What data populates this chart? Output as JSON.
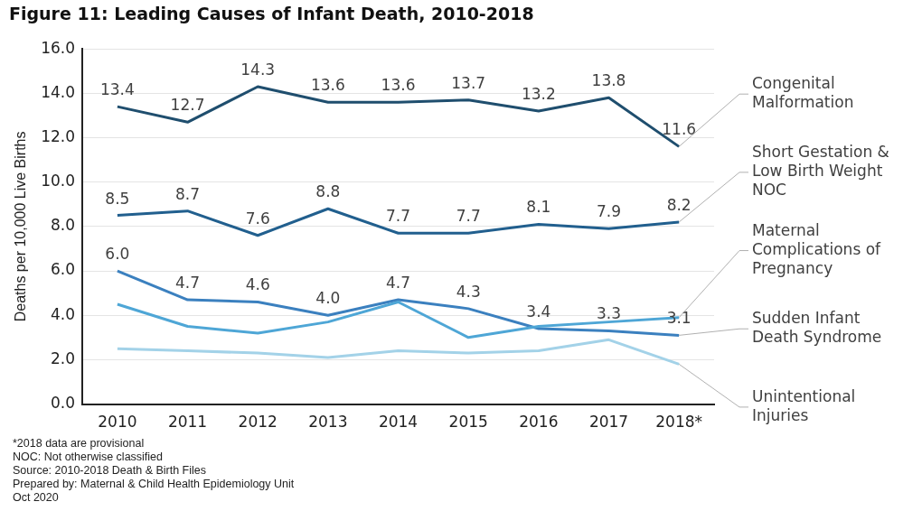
{
  "chart_data": {
    "type": "line",
    "title": "Figure 11: Leading Causes of Infant Death, 2010-2018",
    "ylabel": "Deaths per 10,000 Live Births",
    "categories": [
      "2010",
      "2011",
      "2012",
      "2013",
      "2014",
      "2015",
      "2016",
      "2017",
      "2018*"
    ],
    "series": [
      {
        "name": "Congenital Malformation",
        "color": "#1f4e6e",
        "values": [
          13.4,
          12.7,
          14.3,
          13.6,
          13.6,
          13.7,
          13.2,
          13.8,
          11.6
        ],
        "value_labels": [
          "13.4",
          "12.7",
          "14.3",
          "13.6",
          "13.6",
          "13.7",
          "13.2",
          "13.8",
          "11.6"
        ]
      },
      {
        "name": "Short Gestation & Low Birth Weight NOC",
        "color": "#215f8e",
        "values": [
          8.5,
          8.7,
          7.6,
          8.8,
          7.7,
          7.7,
          8.1,
          7.9,
          8.2
        ],
        "value_labels": [
          "8.5",
          "8.7",
          "7.6",
          "8.8",
          "7.7",
          "7.7",
          "8.1",
          "7.9",
          "8.2"
        ]
      },
      {
        "name": "Maternal Complications of Pregnancy",
        "color": "#4ea6d6",
        "values": [
          4.5,
          3.5,
          3.2,
          3.7,
          4.6,
          3.0,
          3.5,
          3.7,
          3.9
        ]
      },
      {
        "name": "Sudden Infant Death Syndrome",
        "color": "#3b80bf",
        "values": [
          6.0,
          4.7,
          4.6,
          4.0,
          4.7,
          4.3,
          3.4,
          3.3,
          3.1
        ],
        "value_labels": [
          "6.0",
          "4.7",
          "4.6",
          "4.0",
          "4.7",
          "4.3",
          "3.4",
          "3.3",
          "3.1"
        ]
      },
      {
        "name": "Unintentional Injuries",
        "color": "#a3d2e8",
        "values": [
          2.5,
          2.4,
          2.3,
          2.1,
          2.4,
          2.3,
          2.4,
          2.9,
          1.8
        ]
      }
    ],
    "ylim": [
      0,
      16
    ],
    "yticks": [
      {
        "value": 0,
        "label": "0.0"
      },
      {
        "value": 2,
        "label": "2.0"
      },
      {
        "value": 4,
        "label": "4.0"
      },
      {
        "value": 6,
        "label": "6.0"
      },
      {
        "value": 8,
        "label": "8.0"
      },
      {
        "value": 10,
        "label": "10.0"
      },
      {
        "value": 12,
        "label": "12.0"
      },
      {
        "value": 14,
        "label": "14.0"
      },
      {
        "value": 16,
        "label": "16.0"
      }
    ],
    "grid": "y",
    "legend": false,
    "marker": "none",
    "line_style": "solid",
    "annotations": [
      "*2018 data are provisional",
      "NOC: Not otherwise classified",
      "Source: 2010-2018  Death & Birth Files",
      "Prepared by: Maternal & Child Health Epidemiology Unit",
      "Oct 2020"
    ]
  }
}
